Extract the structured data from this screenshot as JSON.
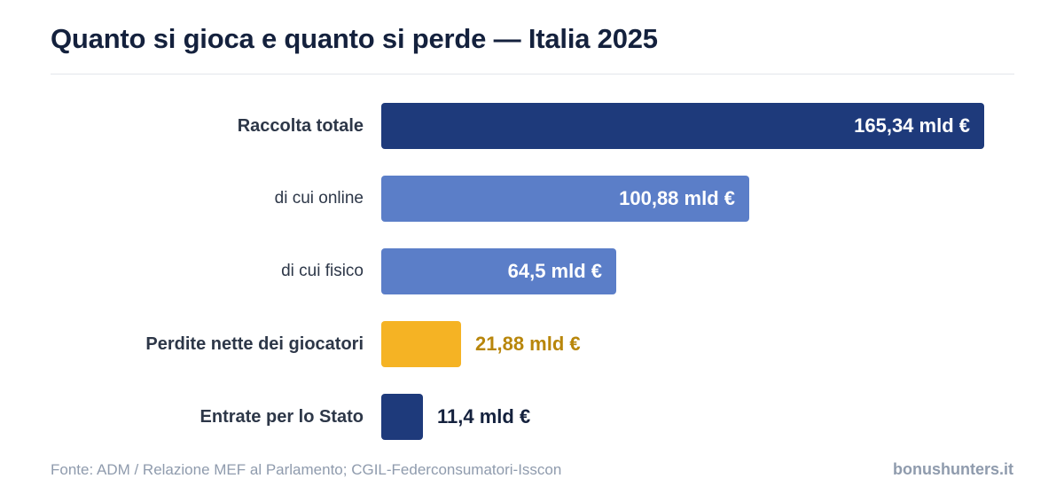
{
  "chart_data": {
    "type": "bar",
    "orientation": "horizontal",
    "title": "Quanto si gioca e quanto si perde — Italia 2025",
    "categories": [
      "Raccolta totale",
      "di cui online",
      "di cui fisico",
      "Perdite nette dei giocatori",
      "Entrate per lo Stato"
    ],
    "values": [
      165.34,
      100.88,
      64.5,
      21.88,
      11.4
    ],
    "value_labels": [
      "165,34 mld €",
      "100,88 mld €",
      "64,5 mld €",
      "21,88 mld €",
      "11,4 mld €"
    ],
    "colors": [
      "#1e3a7b",
      "#5b7ec8",
      "#5b7ec8",
      "#f5b324",
      "#1e3a7b"
    ],
    "label_colors": [
      "#ffffff",
      "#ffffff",
      "#ffffff",
      "#b8860b",
      "#14213d"
    ],
    "bold_labels": [
      true,
      false,
      false,
      true,
      true
    ],
    "xlim": [
      0,
      165.34
    ],
    "grid": false,
    "legend": "none"
  },
  "footer": {
    "source": "Fonte: ADM / Relazione MEF al Parlamento; CGIL-Federconsumatori-Isscon",
    "brand": "bonushunters.it"
  }
}
